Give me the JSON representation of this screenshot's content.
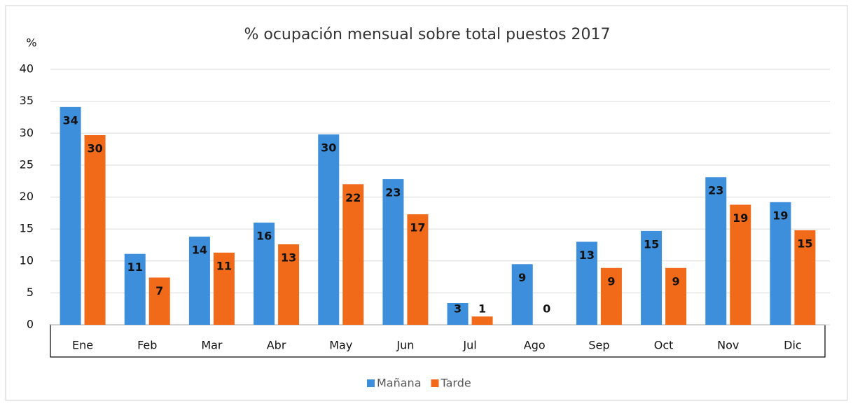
{
  "chart_data": {
    "type": "bar",
    "title": "% ocupación mensual sobre total puestos 2017",
    "y_label": "%",
    "categories": [
      "Ene",
      "Feb",
      "Mar",
      "Abr",
      "May",
      "Jun",
      "Jul",
      "Ago",
      "Sep",
      "Oct",
      "Nov",
      "Dic"
    ],
    "series": [
      {
        "name": "Mañana",
        "color": "#3d8fdc",
        "values": [
          34.1,
          11.1,
          13.8,
          16.0,
          29.8,
          22.8,
          3.4,
          9.5,
          13.0,
          14.7,
          23.1,
          19.2
        ],
        "value_labels": [
          "34",
          "11",
          "14",
          "16",
          "30",
          "23",
          "3",
          "9",
          "13",
          "15",
          "23",
          "19"
        ]
      },
      {
        "name": "Tarde",
        "color": "#f06a1a",
        "values": [
          29.7,
          7.4,
          11.3,
          12.6,
          22.0,
          17.3,
          1.3,
          0,
          8.9,
          8.9,
          18.8,
          14.8
        ],
        "value_labels": [
          "30",
          "7",
          "11",
          "13",
          "22",
          "17",
          "1",
          "0",
          "9",
          "9",
          "19",
          "15"
        ]
      }
    ],
    "ylim": [
      0,
      40
    ],
    "yticks": [
      0,
      5,
      10,
      15,
      20,
      25,
      30,
      35,
      40
    ],
    "grid": true,
    "legend": "bottom"
  }
}
